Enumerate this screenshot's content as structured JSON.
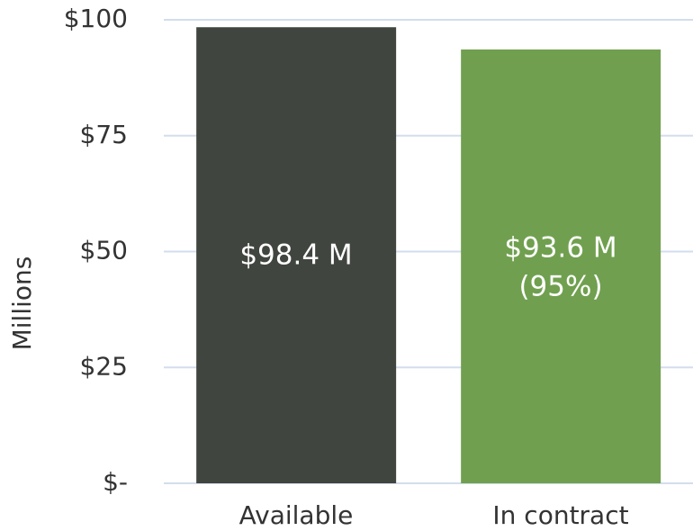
{
  "chart_data": {
    "type": "bar",
    "y_axis_label": "Millions",
    "categories": [
      "Available",
      "In contract"
    ],
    "values": [
      98.4,
      93.6
    ],
    "value_labels": [
      [
        "$98.4 M"
      ],
      [
        "$93.6 M",
        "(95%)"
      ]
    ],
    "colors": [
      "#41453f",
      "#70a04f"
    ],
    "ylim": [
      0,
      100
    ],
    "yticks": [
      {
        "value": 0,
        "label": "$-"
      },
      {
        "value": 25,
        "label": "$25"
      },
      {
        "value": 50,
        "label": "$50"
      },
      {
        "value": 75,
        "label": "$75"
      },
      {
        "value": 100,
        "label": "$100"
      }
    ],
    "grid": true
  }
}
